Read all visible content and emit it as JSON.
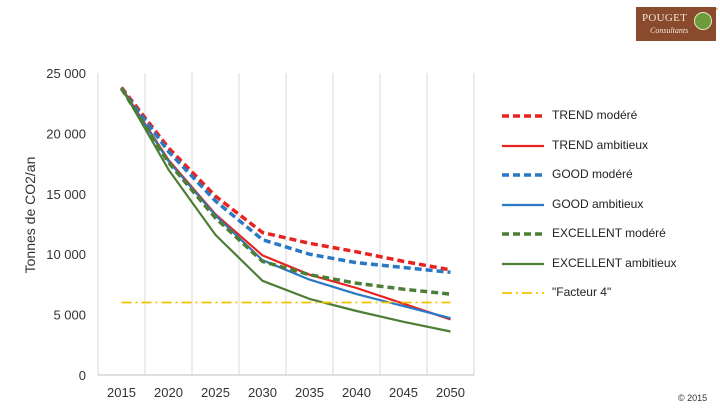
{
  "branding": {
    "logo_name": "POUGET",
    "logo_sub": "Consultants",
    "copyright": "© 2015"
  },
  "chart_data": {
    "type": "line",
    "title": "",
    "ylabel": "Tonnes de CO2/an",
    "xlabel": "",
    "x": [
      2015,
      2020,
      2025,
      2030,
      2035,
      2040,
      2045,
      2050
    ],
    "ylim": [
      0,
      25000
    ],
    "yticks": [
      0,
      5000,
      10000,
      15000,
      20000,
      25000
    ],
    "ytick_labels": [
      "0",
      "5 000",
      "10 000",
      "15 000",
      "20 000",
      "25 000"
    ],
    "xtick_labels": [
      "2015",
      "2020",
      "2025",
      "2030",
      "2035",
      "2040",
      "2045",
      "2050"
    ],
    "grid": "vertical",
    "legend_position": "right",
    "series": [
      {
        "name": "TREND modéré",
        "color": "#e8231f",
        "style": "dashed",
        "values": [
          23800,
          18800,
          14800,
          11800,
          10900,
          10200,
          9400,
          8700
        ]
      },
      {
        "name": "TREND ambitieux",
        "color": "#e8231f",
        "style": "solid",
        "values": [
          23800,
          17800,
          13300,
          9900,
          8300,
          7200,
          5900,
          4600
        ]
      },
      {
        "name": "GOOD modéré",
        "color": "#2979c4",
        "style": "dashed",
        "values": [
          23700,
          18500,
          14400,
          11200,
          10000,
          9300,
          8900,
          8500
        ]
      },
      {
        "name": "GOOD ambitieux",
        "color": "#2979c4",
        "style": "solid",
        "values": [
          23700,
          17700,
          13200,
          9500,
          7900,
          6700,
          5700,
          4700
        ]
      },
      {
        "name": "EXCELLENT modéré",
        "color": "#4c7e35",
        "style": "dashed",
        "values": [
          23700,
          17600,
          13000,
          9400,
          8300,
          7600,
          7100,
          6700
        ]
      },
      {
        "name": "EXCELLENT ambitieux",
        "color": "#4c7e35",
        "style": "solid",
        "values": [
          23800,
          17000,
          11600,
          7800,
          6300,
          5300,
          4400,
          3600
        ]
      },
      {
        "name": "\"Facteur 4\"",
        "color": "#f2c200",
        "style": "dashdot",
        "values": [
          6000,
          6000,
          6000,
          6000,
          6000,
          6000,
          6000,
          6000
        ]
      }
    ]
  }
}
